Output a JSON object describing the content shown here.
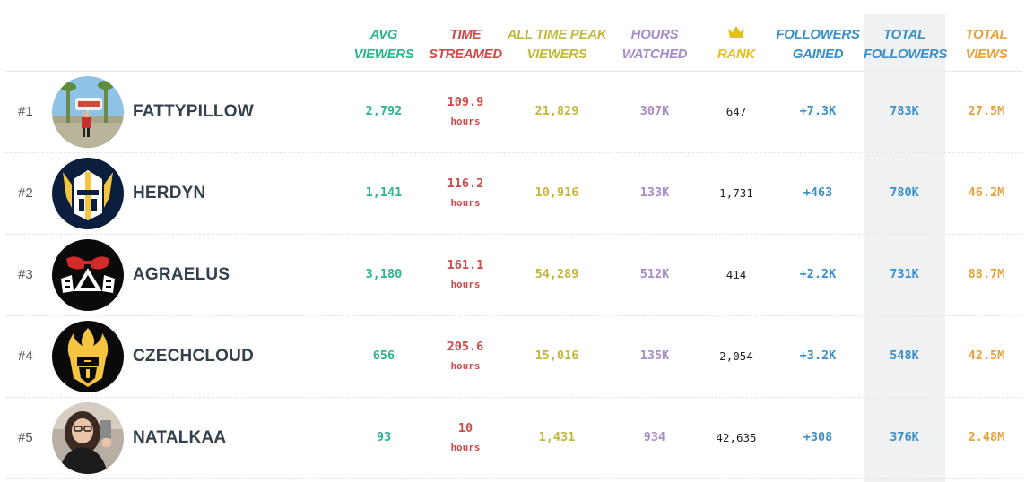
{
  "colors": {
    "avg_viewers": "#2db48e",
    "time_streamed": "#cf4b4b",
    "peak_viewers": "#c2b83a",
    "hours_watched": "#a88cc9",
    "rank": "#e8be1a",
    "followers_gained": "#3a8fc9",
    "total_followers": "#3a8fc9",
    "total_views": "#e6a13a"
  },
  "header": {
    "avg_viewers": [
      "AVG",
      "VIEWERS"
    ],
    "time_streamed": [
      "TIME",
      "STREAMED"
    ],
    "peak_viewers": [
      "ALL TIME PEAK",
      "VIEWERS"
    ],
    "hours_watched": [
      "HOURS",
      "WATCHED"
    ],
    "rank_icon": "crown-icon",
    "rank": "RANK",
    "followers_gained": [
      "FOLLOWERS",
      "GAINED"
    ],
    "total_followers": [
      "TOTAL",
      "FOLLOWERS"
    ],
    "total_views": [
      "TOTAL",
      "VIEWS"
    ]
  },
  "rows": [
    {
      "rank": "#1",
      "name": "FATTYPILLOW",
      "avatar": "photo-avatar",
      "avg_viewers": "2,792",
      "time_streamed": "109.9",
      "time_unit": "hours",
      "peak_viewers": "21,829",
      "hours_watched": "307K",
      "rank_value": "647",
      "followers_gained": "+7.3K",
      "total_followers": "783K",
      "total_views": "27.5M"
    },
    {
      "rank": "#2",
      "name": "HERDYN",
      "avatar": "helmet-logo-avatar",
      "avg_viewers": "1,141",
      "time_streamed": "116.2",
      "time_unit": "hours",
      "peak_viewers": "10,916",
      "hours_watched": "133K",
      "rank_value": "1,731",
      "followers_gained": "+463",
      "total_followers": "780K",
      "total_views": "46.2M"
    },
    {
      "rank": "#3",
      "name": "AGRAELUS",
      "avatar": "gas-mask-avatar",
      "avg_viewers": "3,180",
      "time_streamed": "161.1",
      "time_unit": "hours",
      "peak_viewers": "54,289",
      "hours_watched": "512K",
      "rank_value": "414",
      "followers_gained": "+2.2K",
      "total_followers": "731K",
      "total_views": "88.7M"
    },
    {
      "rank": "#4",
      "name": "CZECHCLOUD",
      "avatar": "flame-logo-avatar",
      "avg_viewers": "656",
      "time_streamed": "205.6",
      "time_unit": "hours",
      "peak_viewers": "15,016",
      "hours_watched": "135K",
      "rank_value": "2,054",
      "followers_gained": "+3.2K",
      "total_followers": "548K",
      "total_views": "42.5M"
    },
    {
      "rank": "#5",
      "name": "NATALKAA",
      "avatar": "selfie-photo-avatar",
      "avg_viewers": "93",
      "time_streamed": "10",
      "time_unit": "hours",
      "peak_viewers": "1,431",
      "hours_watched": "934",
      "rank_value": "42,635",
      "followers_gained": "+308",
      "total_followers": "376K",
      "total_views": "2.48M"
    }
  ]
}
